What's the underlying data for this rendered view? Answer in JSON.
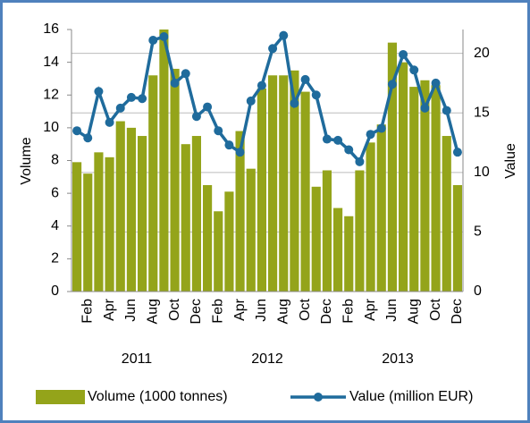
{
  "chart_data": {
    "type": "bar-line",
    "categories": [
      null,
      "Feb",
      null,
      "Apr",
      null,
      "Jun",
      null,
      "Aug",
      null,
      "Oct",
      null,
      "Dec",
      null,
      "Feb",
      null,
      "Apr",
      null,
      "Jun",
      null,
      "Aug",
      null,
      "Oct",
      null,
      "Dec",
      null,
      "Feb",
      null,
      "Apr",
      null,
      "Jun",
      null,
      "Aug",
      null,
      "Oct",
      null,
      "Dec"
    ],
    "years": [
      "2011",
      "2012",
      "2013"
    ],
    "y_label": "Volume",
    "y2_label": "Value",
    "ylim": [
      0,
      16
    ],
    "yticks": [
      0,
      2,
      4,
      6,
      8,
      10,
      12,
      14,
      16
    ],
    "y2lim": [
      0,
      22
    ],
    "y2ticks": [
      0,
      5,
      10,
      15,
      20
    ],
    "grid": true,
    "legend": "bottom",
    "series": [
      {
        "name": "Volume (1000 tonnes)",
        "color": "#94a41a",
        "kind": "bar",
        "values": [
          7.9,
          7.2,
          8.5,
          8.2,
          10.4,
          10.0,
          9.5,
          13.2,
          16.0,
          13.6,
          9.0,
          9.5,
          6.5,
          4.9,
          6.1,
          9.8,
          7.5,
          12.4,
          13.2,
          13.2,
          13.5,
          12.2,
          6.4,
          7.4,
          5.1,
          4.6,
          7.4,
          9.1,
          10.2,
          15.2,
          14.0,
          12.5,
          12.9,
          12.6,
          9.5,
          6.5
        ]
      },
      {
        "name": "Value (million EUR)",
        "color": "#1f6b9c",
        "kind": "line",
        "axis": "y2",
        "values": [
          13.5,
          12.9,
          16.8,
          14.2,
          15.4,
          16.3,
          16.2,
          21.1,
          21.4,
          17.5,
          18.3,
          14.7,
          15.5,
          13.5,
          12.3,
          11.7,
          16.0,
          17.3,
          20.4,
          21.5,
          15.8,
          17.8,
          16.5,
          12.8,
          12.7,
          11.9,
          10.9,
          13.2,
          13.7,
          17.4,
          19.9,
          18.6,
          15.4,
          17.5,
          15.2,
          11.7
        ]
      }
    ]
  }
}
